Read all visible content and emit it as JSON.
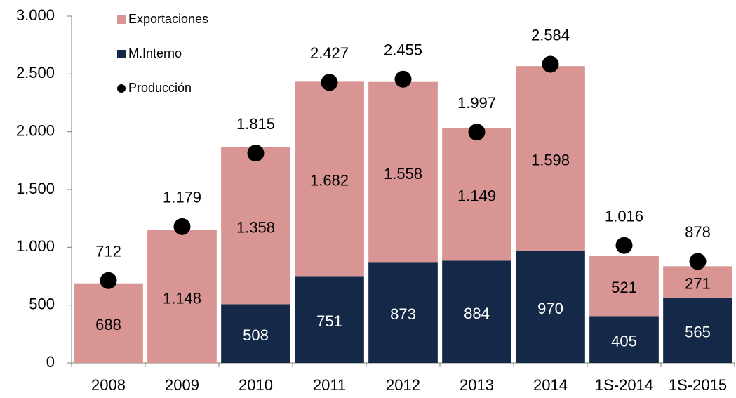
{
  "chart_data": {
    "type": "bar",
    "stacked": true,
    "categories": [
      "2008",
      "2009",
      "2010",
      "2011",
      "2012",
      "2013",
      "2014",
      "1S-2014",
      "1S-2015"
    ],
    "series": [
      {
        "name": "Exportaciones",
        "color": "#d99594",
        "values": [
          688,
          1148,
          1358,
          1682,
          1558,
          1149,
          1598,
          521,
          271
        ],
        "value_labels": [
          "688",
          "1.148",
          "1.358",
          "1.682",
          "1.558",
          "1.149",
          "1.598",
          "521",
          "271"
        ]
      },
      {
        "name": "M.Interno",
        "color": "#142847",
        "values": [
          null,
          null,
          508,
          751,
          873,
          884,
          970,
          405,
          565
        ]
      },
      {
        "name": "Producción",
        "type": "scatter",
        "color": "#000000",
        "values": [
          712,
          1179,
          1815,
          2427,
          2455,
          1997,
          2584,
          1016,
          878
        ],
        "value_labels": [
          "712",
          "1.179",
          "1.815",
          "2.427",
          "2.455",
          "1.997",
          "2.584",
          "1.016",
          "878"
        ]
      }
    ],
    "ylim": [
      0,
      3000
    ],
    "yticks": [
      0,
      500,
      {
        "value": 1000,
        "label": "1.000"
      },
      {
        "value": 1500,
        "label": "1.500"
      },
      {
        "value": 2000,
        "label": "2.000"
      },
      {
        "value": 2500,
        "label": "2.500"
      },
      {
        "value": 3000,
        "label": "3.000"
      }
    ],
    "grid": false,
    "legend": "upper left"
  }
}
